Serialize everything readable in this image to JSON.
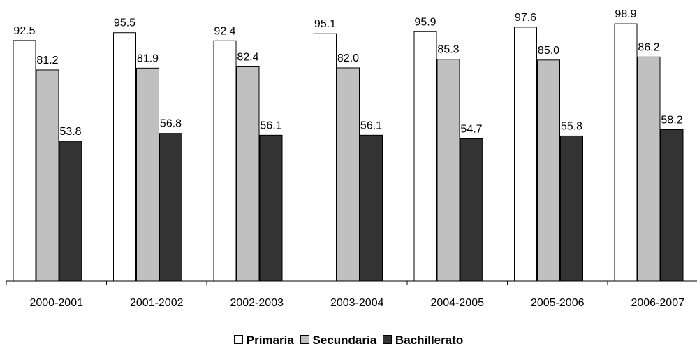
{
  "chart_data": {
    "type": "bar",
    "categories": [
      "2000-2001",
      "2001-2002",
      "2002-2003",
      "2003-2004",
      "2004-2005",
      "2005-2006",
      "2006-2007"
    ],
    "series": [
      {
        "name": "Primaria",
        "values": [
          92.5,
          95.5,
          92.4,
          95.1,
          95.9,
          97.6,
          98.9
        ],
        "labels": [
          "92.5",
          "95.5",
          "92.4",
          "95.1",
          "95.9",
          "97.6",
          "98.9"
        ],
        "color": "#ffffff"
      },
      {
        "name": "Secundaria",
        "values": [
          81.2,
          81.9,
          82.4,
          82.0,
          85.3,
          85.0,
          86.2
        ],
        "labels": [
          "81.2",
          "81.9",
          "82.4",
          "82.0",
          "85.3",
          "85.0",
          "86.2"
        ],
        "color": "#c0c0c0"
      },
      {
        "name": "Bachillerato",
        "values": [
          53.8,
          56.8,
          56.1,
          56.1,
          54.7,
          55.8,
          58.2
        ],
        "labels": [
          "53.8",
          "56.8",
          "56.1",
          "56.1",
          "54.7",
          "55.8",
          "58.2"
        ],
        "color": "#333333"
      }
    ],
    "ylim": [
      0,
      100
    ],
    "grid": false,
    "legend_position": "bottom"
  }
}
